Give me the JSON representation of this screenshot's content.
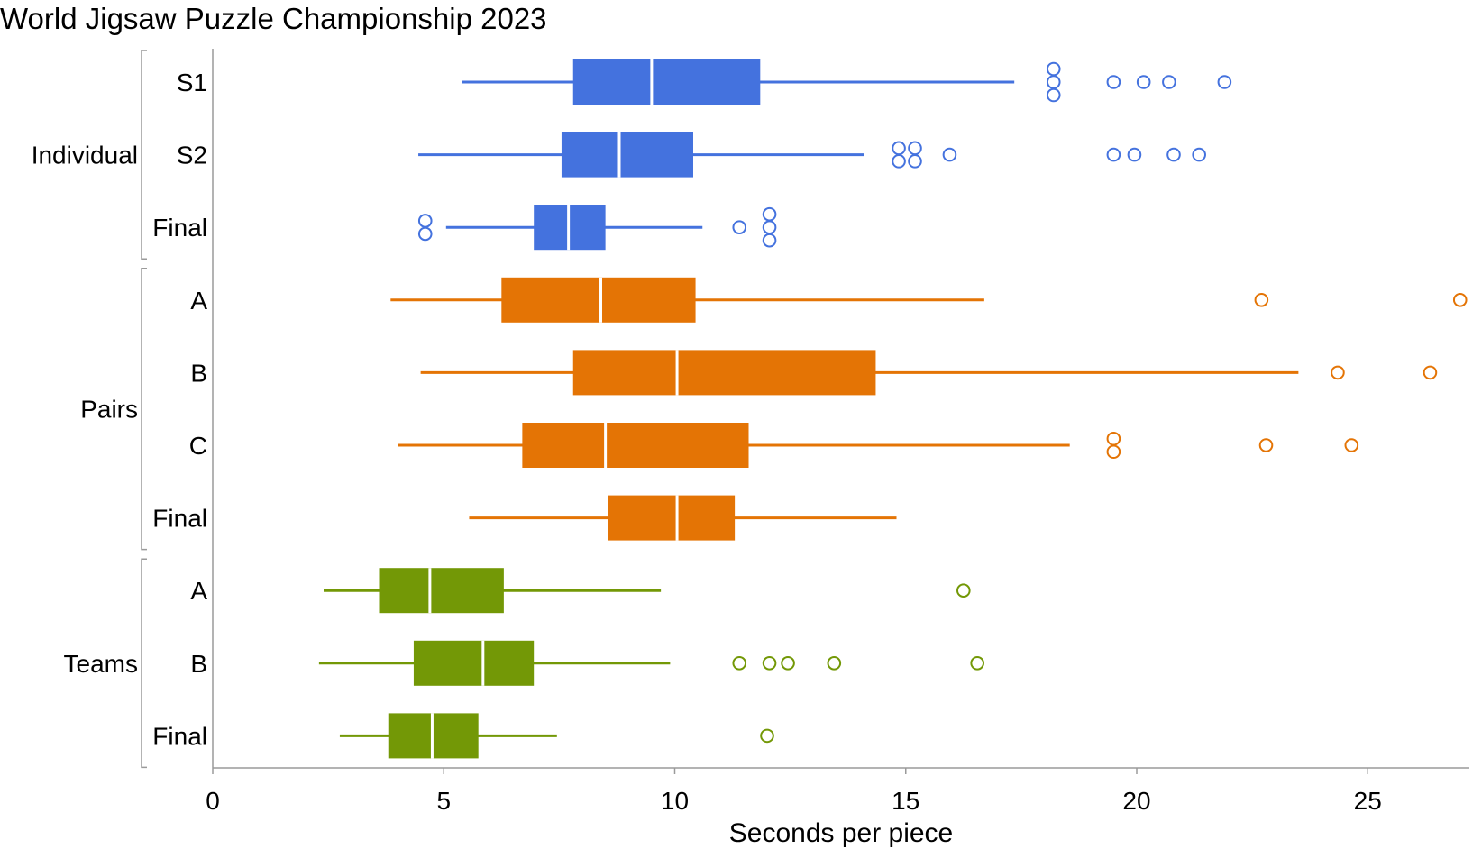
{
  "chart_data": {
    "type": "boxplot",
    "orientation": "horizontal",
    "title": "World Jigsaw Puzzle Championship 2023",
    "xlabel": "Seconds per piece",
    "xlim": [
      0,
      27.2
    ],
    "xticks": [
      0,
      5,
      10,
      15,
      20,
      25
    ],
    "grid": false,
    "groups": [
      {
        "name": "Individual",
        "color": "#4472DE",
        "rows": [
          {
            "label": "S1",
            "whisker_low": 5.4,
            "q1": 7.8,
            "median": 9.5,
            "q3": 11.85,
            "whisker_high": 17.35,
            "outliers": [
              18.2,
              18.2,
              18.2,
              19.5,
              20.15,
              20.7,
              21.9
            ]
          },
          {
            "label": "S2",
            "whisker_low": 4.45,
            "q1": 7.55,
            "median": 8.8,
            "q3": 10.4,
            "whisker_high": 14.1,
            "outliers": [
              14.85,
              14.85,
              15.2,
              15.2,
              15.95,
              19.5,
              19.95,
              20.8,
              21.35
            ]
          },
          {
            "label": "Final",
            "whisker_low": 5.05,
            "q1": 6.95,
            "median": 7.7,
            "q3": 8.5,
            "whisker_high": 10.6,
            "outliers": [
              4.6,
              4.6,
              11.4,
              12.05,
              12.05,
              12.05
            ]
          }
        ]
      },
      {
        "name": "Pairs",
        "color": "#E47405",
        "rows": [
          {
            "label": "A",
            "whisker_low": 3.85,
            "q1": 6.25,
            "median": 8.4,
            "q3": 10.45,
            "whisker_high": 16.7,
            "outliers": [
              22.7,
              27.0
            ]
          },
          {
            "label": "B",
            "whisker_low": 4.5,
            "q1": 7.8,
            "median": 10.05,
            "q3": 14.35,
            "whisker_high": 23.5,
            "outliers": [
              24.35,
              26.35
            ]
          },
          {
            "label": "C",
            "whisker_low": 4.0,
            "q1": 6.7,
            "median": 8.5,
            "q3": 11.6,
            "whisker_high": 18.55,
            "outliers": [
              19.5,
              19.5,
              22.8,
              24.65
            ]
          },
          {
            "label": "Final",
            "whisker_low": 5.55,
            "q1": 8.55,
            "median": 10.05,
            "q3": 11.3,
            "whisker_high": 14.8,
            "outliers": []
          }
        ]
      },
      {
        "name": "Teams",
        "color": "#739806",
        "rows": [
          {
            "label": "A",
            "whisker_low": 2.4,
            "q1": 3.6,
            "median": 4.7,
            "q3": 6.3,
            "whisker_high": 9.7,
            "outliers": [
              16.25
            ]
          },
          {
            "label": "B",
            "whisker_low": 2.3,
            "q1": 4.35,
            "median": 5.85,
            "q3": 6.95,
            "whisker_high": 9.9,
            "outliers": [
              11.4,
              12.05,
              12.45,
              13.45,
              16.55
            ]
          },
          {
            "label": "Final",
            "whisker_low": 2.75,
            "q1": 3.8,
            "median": 4.75,
            "q3": 5.75,
            "whisker_high": 7.45,
            "outliers": [
              12.0
            ]
          }
        ]
      }
    ]
  }
}
